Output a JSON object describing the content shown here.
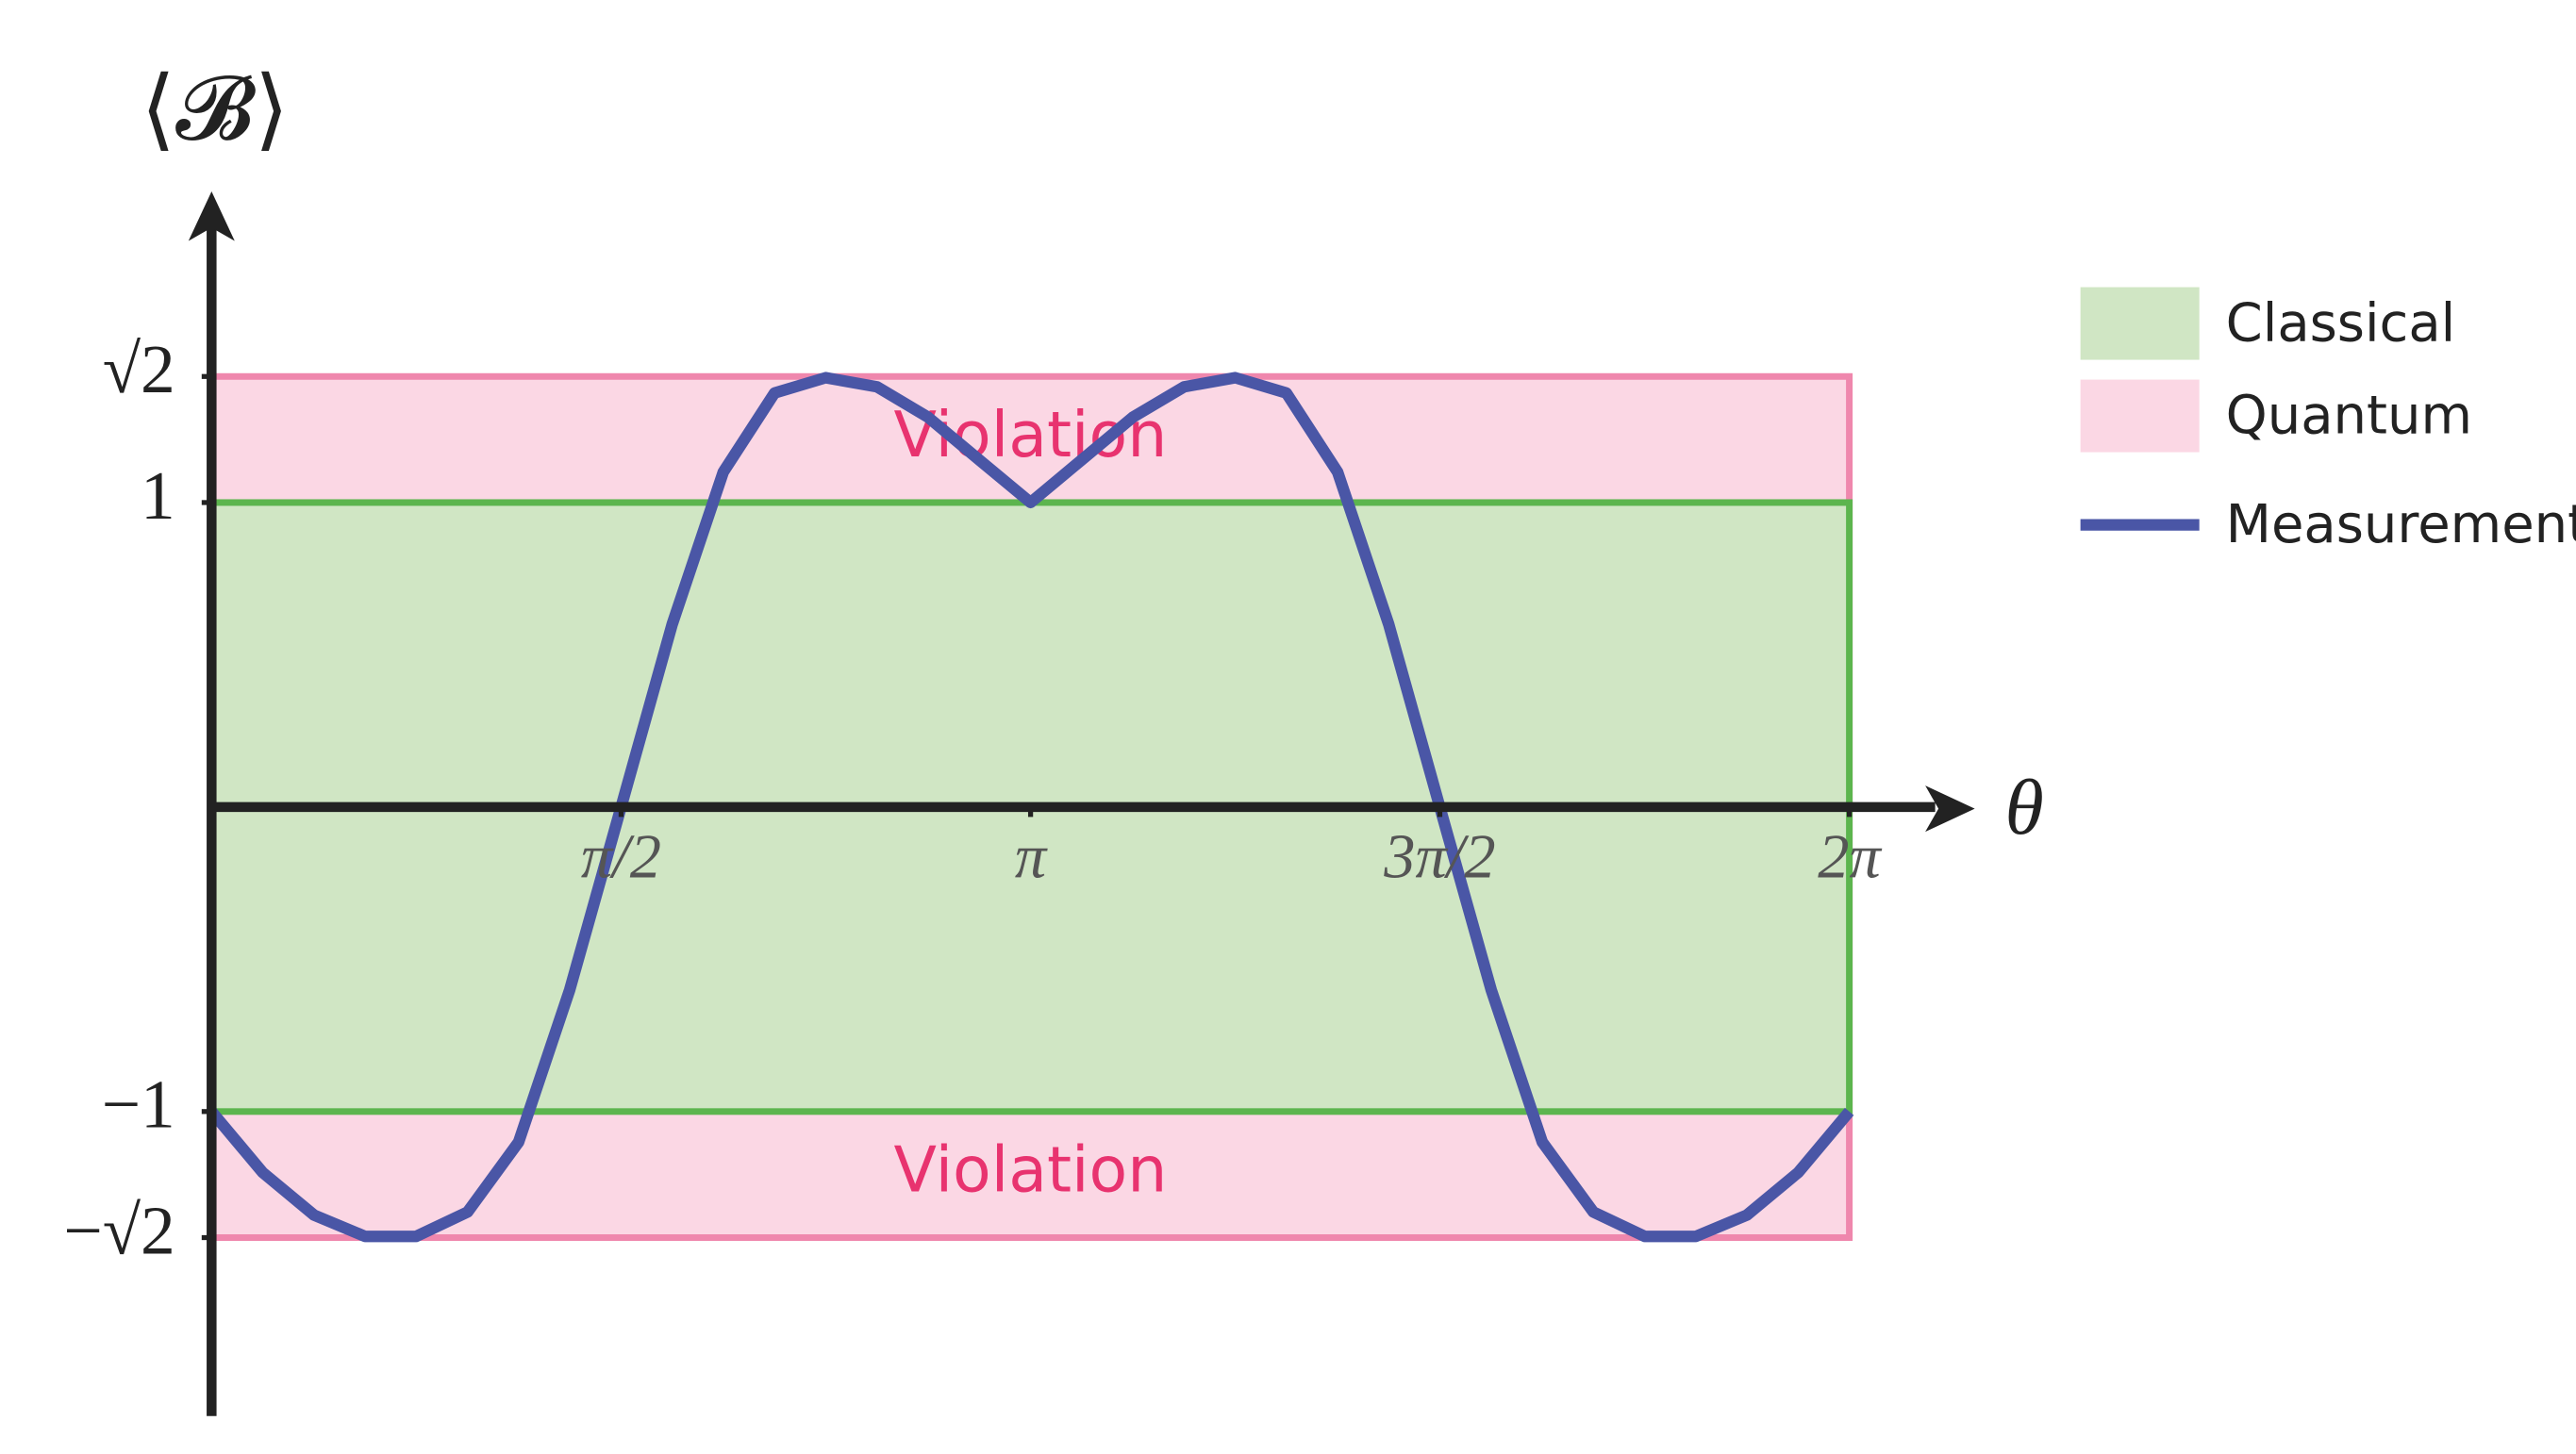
{
  "chart_data": {
    "type": "line",
    "y_label": "⟨𝓑⟩",
    "x_label": "θ",
    "x": [
      0,
      0.196,
      0.393,
      0.589,
      0.785,
      0.982,
      1.178,
      1.374,
      1.571,
      1.767,
      1.963,
      2.16,
      2.356,
      2.553,
      2.749,
      2.945,
      3.142,
      3.338,
      3.534,
      3.731,
      3.927,
      4.123,
      4.32,
      4.516,
      4.712,
      4.909,
      5.105,
      5.301,
      5.498,
      5.694,
      5.89,
      6.087,
      6.283
    ],
    "series": [
      {
        "name": "Measurement",
        "color": "#4a56a6",
        "values": [
          -1,
          -1.2,
          -1.34,
          -1.41,
          -1.41,
          -1.33,
          -1.1,
          -0.6,
          0,
          0.6,
          1.1,
          1.36,
          1.41,
          1.38,
          1.28,
          1.14,
          1,
          1.14,
          1.28,
          1.38,
          1.41,
          1.36,
          1.1,
          0.6,
          0,
          -0.6,
          -1.1,
          -1.33,
          -1.41,
          -1.41,
          -1.34,
          -1.2,
          -1
        ]
      }
    ],
    "bands": [
      {
        "name": "Quantum",
        "from": -1.414,
        "to": 1.414,
        "color": "#fbd7e4",
        "edge": "#ef87ad"
      },
      {
        "name": "Classical",
        "from": -1,
        "to": 1,
        "color": "#d0e6c4",
        "edge": "#5cb54e"
      }
    ],
    "annotations": [
      "Violation",
      "Violation"
    ],
    "xlim": [
      0,
      6.283
    ],
    "ylim": [
      -2,
      2
    ],
    "xticks": [
      {
        "value": 1.571,
        "label": "π/2"
      },
      {
        "value": 3.142,
        "label": "π"
      },
      {
        "value": 4.712,
        "label": "3π/2"
      },
      {
        "value": 6.283,
        "label": "2π"
      }
    ],
    "yticks": [
      {
        "value": 1.414,
        "label": "√2"
      },
      1,
      {
        "value": -1,
        "label": "−1"
      },
      {
        "value": -1.414,
        "label": "−√2"
      }
    ],
    "legend": "right"
  }
}
